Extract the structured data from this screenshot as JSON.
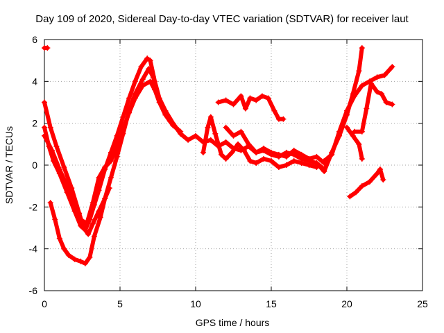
{
  "chart_data": {
    "type": "scatter",
    "title": "Day 109 of 2020, Sidereal Day-to-day VTEC variation (SDTVAR) for receiver laut",
    "xlabel": "GPS time / hours",
    "ylabel": "SDTVAR / TECUs",
    "xlim": [
      0,
      25
    ],
    "ylim": [
      -6,
      6
    ],
    "xticks": [
      "0",
      "5",
      "10",
      "15",
      "20",
      "25"
    ],
    "yticks": [
      "-6",
      "-4",
      "-2",
      "0",
      "2",
      "4",
      "6"
    ],
    "grid": true,
    "color": "#ff0000",
    "marker": "plus",
    "series": [
      {
        "x": [
          0.0,
          0.2
        ],
        "y": [
          5.6,
          5.6
        ]
      },
      {
        "x": [
          0.0,
          0.3,
          0.6,
          1.0,
          1.5,
          2.0,
          2.4,
          2.7,
          3.0,
          3.3,
          3.6,
          4.0,
          4.4,
          4.8,
          5.2,
          5.6,
          6.0,
          6.4,
          6.8,
          7.0,
          7.3,
          7.6,
          8.0,
          8.5,
          9.0
        ],
        "y": [
          1.8,
          0.9,
          0.2,
          -0.4,
          -1.3,
          -2.2,
          -2.9,
          -3.1,
          -2.6,
          -1.9,
          -1.2,
          -0.2,
          0.6,
          1.4,
          2.3,
          3.2,
          4.0,
          4.7,
          5.1,
          5.0,
          4.0,
          3.2,
          2.6,
          2.0,
          1.5
        ]
      },
      {
        "x": [
          0.0,
          0.4,
          0.8,
          1.3,
          1.8,
          2.3,
          2.6,
          2.9,
          3.2,
          3.6,
          4.0,
          4.4,
          4.8,
          5.2,
          5.6,
          6.0,
          6.5,
          6.9,
          7.2,
          7.5,
          7.9,
          8.3,
          8.7
        ],
        "y": [
          3.0,
          1.8,
          0.9,
          -0.1,
          -1.1,
          -2.3,
          -3.0,
          -3.3,
          -2.8,
          -2.2,
          -1.6,
          -0.6,
          0.4,
          1.5,
          2.6,
          3.4,
          4.1,
          4.6,
          4.2,
          3.3,
          2.6,
          2.1,
          1.8
        ]
      },
      {
        "x": [
          0.0,
          0.5,
          1.0,
          1.5,
          2.0,
          2.4,
          2.8,
          3.2,
          3.6,
          4.0,
          4.4,
          4.8,
          5.2,
          5.6,
          6.0,
          6.5,
          7.0,
          7.3,
          7.6,
          8.0,
          8.5,
          9.0
        ],
        "y": [
          1.4,
          0.7,
          -0.2,
          -1.0,
          -1.8,
          -2.6,
          -2.8,
          -1.8,
          -0.6,
          -0.1,
          0.2,
          0.9,
          1.7,
          2.5,
          3.2,
          3.8,
          4.0,
          3.6,
          3.0,
          2.4,
          1.9,
          1.6
        ]
      },
      {
        "x": [
          0.4,
          0.7,
          1.0,
          1.3,
          1.6,
          2.0,
          2.4,
          2.7,
          3.0,
          3.3,
          3.7,
          4.0,
          4.3
        ],
        "y": [
          -1.8,
          -2.6,
          -3.5,
          -4.0,
          -4.3,
          -4.5,
          -4.6,
          -4.7,
          -4.4,
          -3.4,
          -2.5,
          -1.6,
          -1.1
        ]
      },
      {
        "x": [
          9.0,
          9.5,
          10.0,
          10.5,
          11.0,
          11.5,
          12.0,
          12.5,
          13.0,
          13.5,
          14.0,
          14.5,
          15.0,
          15.5,
          16.0,
          16.5,
          17.0,
          17.5,
          18.0,
          18.5
        ],
        "y": [
          1.5,
          1.2,
          1.4,
          1.1,
          1.2,
          0.9,
          1.1,
          0.8,
          0.7,
          0.9,
          0.6,
          0.7,
          0.5,
          0.4,
          0.6,
          0.5,
          0.3,
          0.2,
          0.1,
          -0.2
        ]
      },
      {
        "x": [
          10.5,
          10.8,
          11.0,
          11.3,
          11.7,
          12.0,
          12.4,
          12.8,
          13.2,
          13.6,
          14.0,
          14.5,
          15.0,
          15.5,
          16.0,
          16.5,
          17.0,
          17.5,
          18.0
        ],
        "y": [
          0.6,
          1.8,
          2.3,
          1.5,
          0.5,
          0.3,
          0.6,
          1.0,
          0.7,
          0.2,
          0.1,
          0.3,
          0.2,
          -0.1,
          0.0,
          0.2,
          0.1,
          0.0,
          -0.1
        ]
      },
      {
        "x": [
          12.0,
          12.5,
          13.0,
          13.5,
          14.0,
          14.5,
          15.0,
          15.5,
          16.0,
          16.5,
          17.0,
          17.5,
          18.0,
          18.5
        ],
        "y": [
          1.8,
          1.4,
          1.6,
          1.0,
          0.6,
          0.8,
          0.6,
          0.5,
          0.4,
          0.7,
          0.5,
          0.3,
          0.4,
          0.1
        ]
      },
      {
        "x": [
          11.5,
          12.0,
          12.5,
          13.0,
          13.3,
          13.6,
          14.0,
          14.4,
          14.8,
          15.2,
          15.5,
          15.8
        ],
        "y": [
          3.0,
          3.1,
          2.9,
          3.3,
          2.7,
          3.2,
          3.1,
          3.3,
          3.2,
          2.6,
          2.2,
          2.2
        ]
      },
      {
        "x": [
          18.0,
          18.5,
          19.0,
          19.5,
          20.0,
          20.4,
          20.8,
          21.0
        ],
        "y": [
          0.1,
          -0.3,
          0.6,
          1.4,
          2.4,
          3.4,
          4.5,
          5.6
        ]
      },
      {
        "x": [
          18.5,
          19.0,
          19.5,
          20.0,
          20.5,
          21.0,
          21.5,
          22.0,
          22.5,
          23.0
        ],
        "y": [
          0.2,
          0.5,
          1.6,
          2.6,
          3.3,
          3.8,
          4.0,
          4.2,
          4.3,
          4.7
        ]
      },
      {
        "x": [
          20.0,
          20.4,
          20.8,
          21.0
        ],
        "y": [
          1.8,
          1.4,
          1.0,
          0.3
        ]
      },
      {
        "x": [
          20.5,
          21.0,
          21.3,
          21.6,
          22.0,
          22.3,
          22.6,
          23.0
        ],
        "y": [
          1.6,
          1.6,
          2.7,
          3.9,
          3.5,
          3.4,
          3.0,
          2.9
        ]
      },
      {
        "x": [
          20.2,
          20.6,
          21.0,
          21.5,
          22.0,
          22.2,
          22.4
        ],
        "y": [
          -1.5,
          -1.3,
          -1.0,
          -0.8,
          -0.4,
          -0.2,
          -0.7
        ]
      }
    ]
  }
}
